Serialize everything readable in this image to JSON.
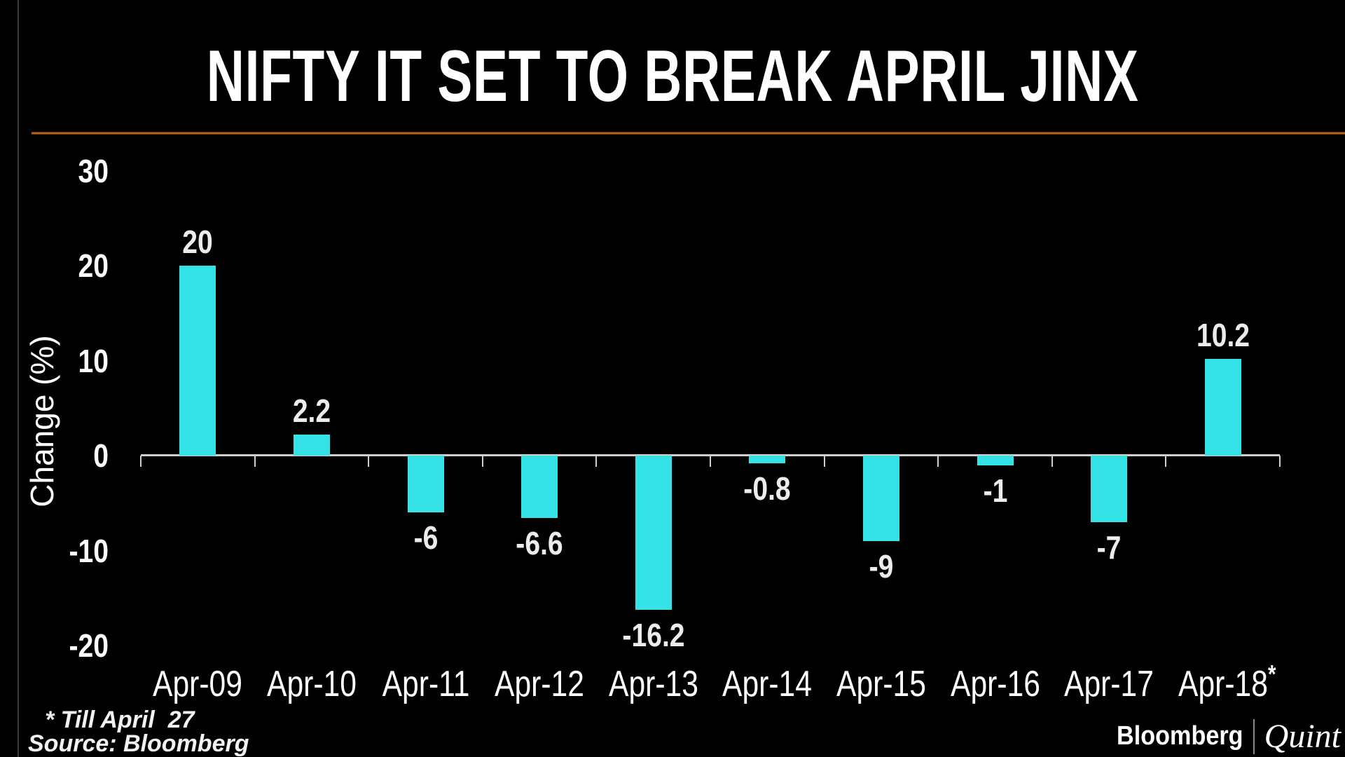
{
  "title": "NIFTY IT SET TO BREAK APRIL JINX",
  "colors": {
    "background": "#000000",
    "bar": "#35e2e6",
    "accent_line": "#b3591e",
    "axis": "#cfcfcf",
    "text": "#ffffff"
  },
  "chart_data": {
    "type": "bar",
    "title": "NIFTY IT SET TO BREAK APRIL JINX",
    "categories": [
      "Apr-09",
      "Apr-10",
      "Apr-11",
      "Apr-12",
      "Apr-13",
      "Apr-14",
      "Apr-15",
      "Apr-16",
      "Apr-17",
      "Apr-18"
    ],
    "values": [
      20,
      2.2,
      -6,
      -6.6,
      -16.2,
      -0.8,
      -9,
      -1,
      -7,
      10.2
    ],
    "value_labels": [
      "20",
      "2.2",
      "-6",
      "-6.6",
      "-16.2",
      "-0.8",
      "-9",
      "-1",
      "-7",
      "10.2"
    ],
    "last_category_superscript": "*",
    "xlabel": "",
    "ylabel": "Change (%)",
    "ylim": [
      -20,
      30
    ],
    "yticks": [
      30,
      20,
      10,
      0,
      -10,
      -20
    ],
    "grid": false,
    "legend": false,
    "bar_color": "#35e2e6"
  },
  "footnotes": {
    "asterisk_note": "* Till April  27",
    "source": "Source: Bloomberg"
  },
  "branding": {
    "bloomberg": "Bloomberg",
    "quint": "Quint"
  }
}
